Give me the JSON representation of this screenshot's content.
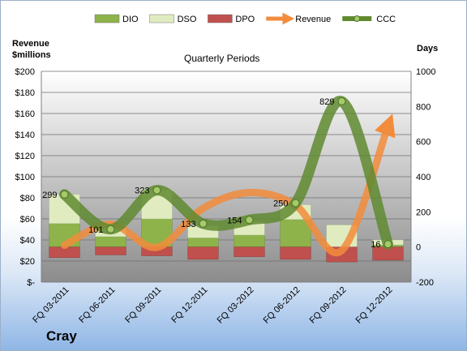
{
  "company": "Cray",
  "chart_data": {
    "type": "bar",
    "title": "Quarterly Periods",
    "left_axis_title": [
      "Revenue",
      "$millions"
    ],
    "right_axis_title": "Days",
    "categories": [
      "FQ 03-2011",
      "FQ 06-2011",
      "FQ 09-2011",
      "FQ 12-2011",
      "FQ 03-2012",
      "FQ 06-2012",
      "FQ 09-2012",
      "FQ 12-2012"
    ],
    "left_axis": {
      "min": 0,
      "max": 200,
      "step": 20,
      "tick_labels": [
        "$-",
        "$20",
        "$40",
        "$60",
        "$80",
        "$100",
        "$120",
        "$140",
        "$160",
        "$180",
        "$200"
      ]
    },
    "right_axis": {
      "min": -200,
      "max": 1000,
      "step": 200,
      "tick_labels": [
        "-200",
        "0",
        "200",
        "400",
        "600",
        "800",
        "1000"
      ]
    },
    "series": [
      {
        "name": "DIO",
        "axis": "right",
        "color": "#8db34a",
        "values": [
          134,
          59,
          160,
          52,
          68,
          157,
          -2,
          12
        ]
      },
      {
        "name": "DSO",
        "axis": "right",
        "color": "#e0ecc0",
        "values": [
          165,
          70,
          167,
          69,
          76,
          83,
          127,
          28
        ]
      },
      {
        "name": "DPO",
        "axis": "right",
        "color": "#c0504d",
        "values": [
          -60,
          -45,
          -50,
          -70,
          -55,
          -70,
          -85,
          -75
        ]
      },
      {
        "name": "Revenue",
        "axis": "left",
        "color": "#f28c3c",
        "values": [
          35,
          55,
          33,
          70,
          85,
          73,
          30,
          148
        ]
      },
      {
        "name": "CCC",
        "axis": "right",
        "color": "#5f8a30",
        "values": [
          299,
          101,
          323,
          133,
          154,
          250,
          829,
          16
        ]
      }
    ],
    "data_labels": [
      "299",
      "101",
      "323",
      "133",
      "154",
      "250",
      "829",
      "16"
    ],
    "legend_position": "top",
    "grid": true
  }
}
